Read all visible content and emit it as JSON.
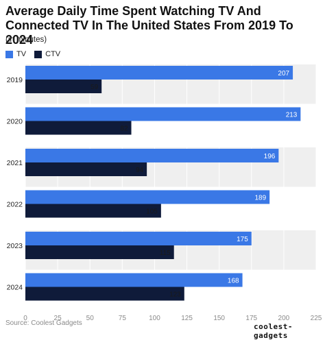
{
  "title": "Average Daily Time Spent Watching TV And Connected TV In The United States From 2019 To 2024",
  "subtitle": "(in minutes)",
  "source": "Source: Coolest Gadgets",
  "logo_text": "coolest-gadgets",
  "colors": {
    "tv": "#3a78e6",
    "ctv": "#0f1b3a",
    "band": "#efefef"
  },
  "chart_data": {
    "type": "bar",
    "orientation": "horizontal",
    "categories": [
      "2019",
      "2020",
      "2021",
      "2022",
      "2023",
      "2024"
    ],
    "series": [
      {
        "name": "TV",
        "values": [
          207,
          213,
          196,
          189,
          175,
          168
        ]
      },
      {
        "name": "CTV",
        "values": [
          59,
          82,
          94,
          105,
          115,
          123
        ]
      }
    ],
    "xlim": [
      0,
      225
    ],
    "xticks": [
      0,
      25,
      50,
      75,
      100,
      125,
      150,
      175,
      200,
      225
    ],
    "legend": "top-left",
    "grid": true
  }
}
